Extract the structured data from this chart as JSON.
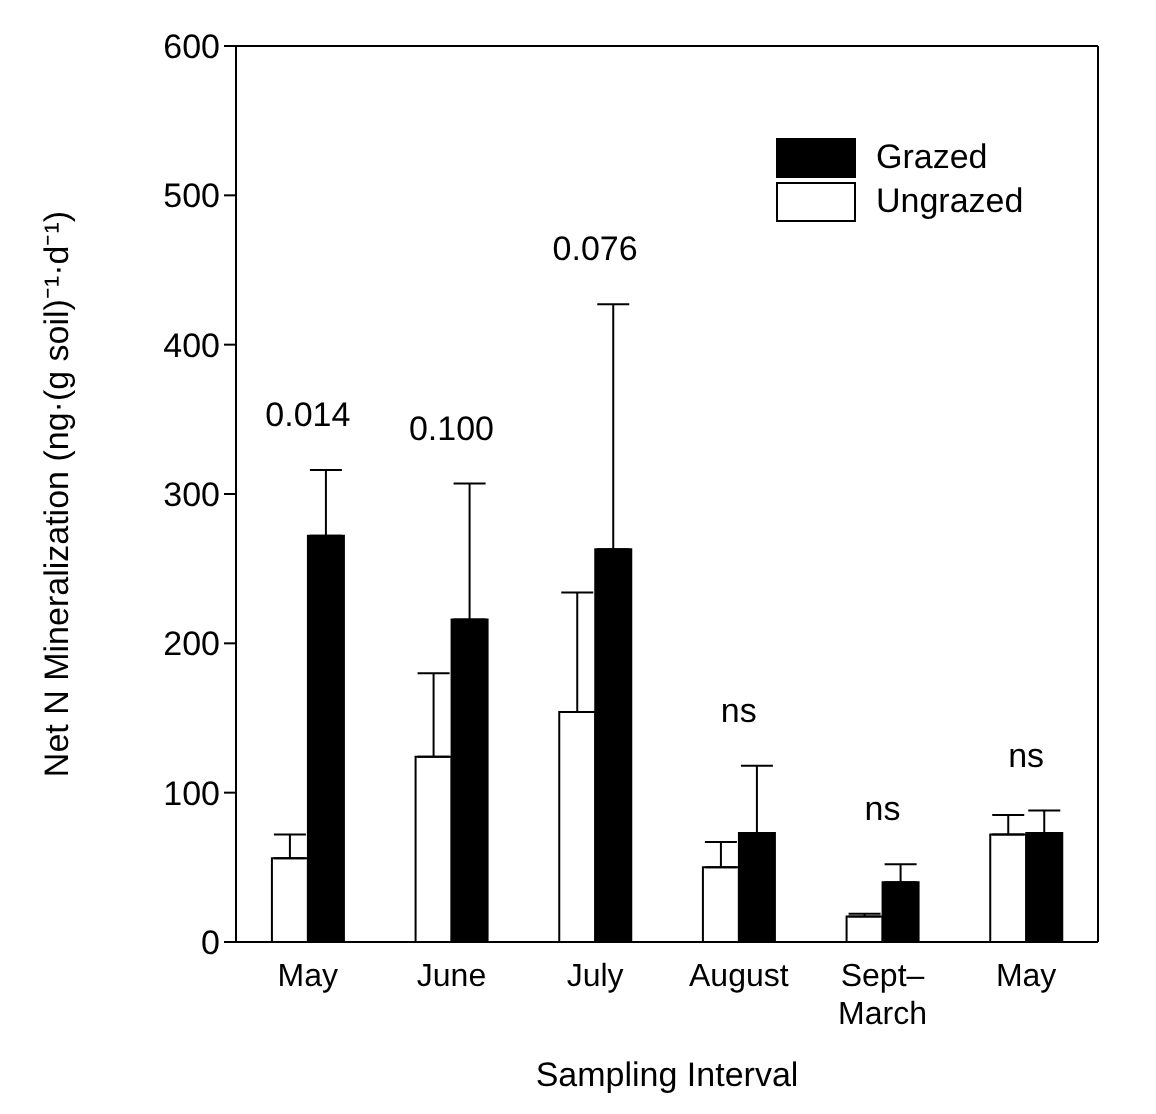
{
  "chart_data": {
    "type": "bar",
    "xlabel": "Sampling Interval",
    "ylabel": "Net N Mineralization (ng·(g soil)⁻¹·d⁻¹)",
    "categories": [
      "May",
      "June",
      "July",
      "August",
      "Sept–March",
      "May"
    ],
    "series": [
      {
        "name": "Ungrazed",
        "color": "#ffffff",
        "values": [
          56,
          124,
          154,
          50,
          17,
          72
        ],
        "errors": [
          [
            56,
            72
          ],
          [
            124,
            180
          ],
          [
            154,
            234
          ],
          [
            50,
            67
          ],
          [
            17,
            19
          ],
          [
            72,
            85
          ]
        ]
      },
      {
        "name": "Grazed",
        "color": "#000000",
        "values": [
          272,
          216,
          263,
          73,
          40,
          73
        ],
        "errors": [
          [
            272,
            316
          ],
          [
            216,
            307
          ],
          [
            263,
            427
          ],
          [
            73,
            118
          ],
          [
            40,
            52
          ],
          [
            73,
            88
          ]
        ]
      }
    ],
    "ylim": [
      0,
      600
    ],
    "yticks": [
      0,
      100,
      200,
      300,
      400,
      500,
      600
    ],
    "grid": false,
    "legend": "top right",
    "annotations": [
      "0.014",
      "0.100",
      "0.076",
      "ns",
      "ns",
      "ns"
    ]
  }
}
